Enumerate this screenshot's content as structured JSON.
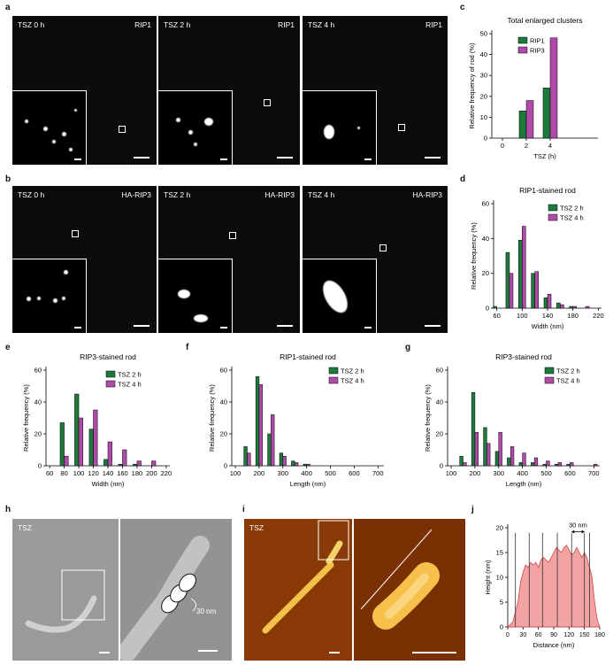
{
  "letters": {
    "a": "a",
    "b": "b",
    "c": "c",
    "d": "d",
    "e": "e",
    "f": "f",
    "g": "g",
    "h": "h",
    "i": "i",
    "j": "j"
  },
  "row_a": [
    {
      "time": "TSZ 0 h",
      "protein": "RIP1"
    },
    {
      "time": "TSZ 2 h",
      "protein": "RIP1"
    },
    {
      "time": "TSZ 4 h",
      "protein": "RIP1"
    }
  ],
  "row_b": [
    {
      "time": "TSZ 0 h",
      "protein": "HA-RIP3"
    },
    {
      "time": "TSZ 2 h",
      "protein": "HA-RIP3"
    },
    {
      "time": "TSZ 4 h",
      "protein": "HA-RIP3"
    }
  ],
  "panel_h": {
    "label": "TSZ",
    "annotation": "30 nm"
  },
  "panel_i": {
    "label": "TSZ"
  },
  "chart_data": [
    {
      "id": "c",
      "type": "bar",
      "title": "Total enlarged clusters",
      "xlabel": "TSZ (h)",
      "ylabel": "Relative frequency of rod (%)",
      "categories": [
        "0",
        "2",
        "4"
      ],
      "ylim": [
        0,
        50
      ],
      "yticks": [
        0,
        10,
        20,
        30,
        40,
        50
      ],
      "series": [
        {
          "name": "RIP1",
          "color": "#1e7a3c",
          "values": [
            0,
            13,
            24
          ]
        },
        {
          "name": "RIP3",
          "color": "#b04aa8",
          "values": [
            0,
            18,
            48
          ]
        }
      ],
      "legend": "top-left"
    },
    {
      "id": "d",
      "type": "bar",
      "title": "RIP1-stained rod",
      "xlabel": "Width (nm)",
      "ylabel": "Relative frequency (%)",
      "x": [
        60,
        80,
        100,
        120,
        140,
        160,
        180,
        200
      ],
      "xlim": [
        55,
        225
      ],
      "xticks": [
        60,
        100,
        140,
        180,
        220
      ],
      "ylim": [
        0,
        60
      ],
      "yticks": [
        0,
        20,
        40,
        60
      ],
      "binw": 20,
      "series": [
        {
          "name": "TSZ 2 h",
          "color": "#1e7a3c",
          "values": [
            1,
            32,
            39,
            20,
            6,
            3,
            1,
            0
          ]
        },
        {
          "name": "TSZ 4 h",
          "color": "#b04aa8",
          "values": [
            0,
            20,
            47,
            21,
            8,
            2,
            1,
            1
          ]
        }
      ],
      "legend": "top-right"
    },
    {
      "id": "e",
      "type": "bar",
      "title": "RIP3-stained rod",
      "xlabel": "Width (nm)",
      "ylabel": "Relative frequency (%)",
      "x": [
        80,
        100,
        120,
        140,
        160,
        180,
        200
      ],
      "xlim": [
        55,
        225
      ],
      "xticks": [
        60,
        80,
        100,
        120,
        140,
        160,
        180,
        200,
        220
      ],
      "ylim": [
        0,
        60
      ],
      "yticks": [
        0,
        20,
        40,
        60
      ],
      "binw": 20,
      "series": [
        {
          "name": "TSZ 2 h",
          "color": "#1e7a3c",
          "values": [
            27,
            45,
            23,
            4,
            1,
            1,
            0
          ]
        },
        {
          "name": "TSZ 4 h",
          "color": "#b04aa8",
          "values": [
            6,
            30,
            35,
            15,
            10,
            3,
            3
          ]
        }
      ],
      "legend": "top-right"
    },
    {
      "id": "f",
      "type": "bar",
      "title": "RIP1-stained rod",
      "xlabel": "Length (nm)",
      "ylabel": "Relative frequency (%)",
      "x": [
        150,
        200,
        250,
        300,
        350,
        400
      ],
      "xlim": [
        85,
        725
      ],
      "xticks": [
        100,
        200,
        300,
        400,
        500,
        600,
        700
      ],
      "ylim": [
        0,
        60
      ],
      "yticks": [
        0,
        20,
        40,
        60
      ],
      "binw": 50,
      "series": [
        {
          "name": "TSZ 2 h",
          "color": "#1e7a3c",
          "values": [
            12,
            56,
            20,
            8,
            3,
            1
          ]
        },
        {
          "name": "TSZ 4 h",
          "color": "#b04aa8",
          "values": [
            8,
            51,
            32,
            6,
            2,
            1
          ]
        }
      ],
      "legend": "top-right"
    },
    {
      "id": "g",
      "type": "bar",
      "title": "RIP3-stained rod",
      "xlabel": "Length (nm)",
      "ylabel": "Relative frequency (%)",
      "x": [
        150,
        200,
        250,
        300,
        350,
        400,
        450,
        500,
        550,
        600,
        700
      ],
      "xlim": [
        85,
        725
      ],
      "xticks": [
        100,
        200,
        300,
        400,
        500,
        600,
        700
      ],
      "ylim": [
        0,
        60
      ],
      "yticks": [
        0,
        20,
        40,
        60
      ],
      "binw": 50,
      "series": [
        {
          "name": "TSZ 2 h",
          "color": "#1e7a3c",
          "values": [
            6,
            46,
            24,
            9,
            5,
            2,
            2,
            1,
            1,
            1,
            0
          ]
        },
        {
          "name": "TSZ 4 h",
          "color": "#b04aa8",
          "values": [
            2,
            21,
            14,
            21,
            12,
            8,
            5,
            3,
            2,
            2,
            1
          ]
        }
      ],
      "legend": "top-right"
    },
    {
      "id": "j",
      "type": "area",
      "title": "",
      "xlabel": "Distance (nm)",
      "ylabel": "Height (nm)",
      "xlim": [
        0,
        180
      ],
      "xticks": [
        0,
        30,
        60,
        90,
        120,
        150,
        180
      ],
      "ylim": [
        0,
        20
      ],
      "yticks": [
        0,
        5,
        10,
        15,
        20
      ],
      "x": [
        0,
        5,
        10,
        15,
        20,
        25,
        30,
        35,
        40,
        45,
        50,
        55,
        60,
        65,
        70,
        75,
        80,
        85,
        90,
        95,
        100,
        105,
        110,
        115,
        120,
        125,
        130,
        135,
        140,
        145,
        150,
        155,
        160,
        165,
        170,
        175,
        180
      ],
      "y": [
        0,
        0.5,
        1,
        3,
        5,
        9,
        11,
        12.5,
        12,
        13,
        12.5,
        13,
        12,
        13.5,
        14,
        13.5,
        13,
        14,
        15,
        16,
        15.5,
        15,
        16,
        16.5,
        15.5,
        14.5,
        15,
        16,
        15,
        14,
        15,
        14,
        12,
        10,
        5,
        1.5,
        0
      ],
      "vlines": [
        15,
        42,
        68,
        97,
        125,
        150,
        160
      ],
      "annotation": "30 nm",
      "color": "#f3a3a3"
    }
  ]
}
